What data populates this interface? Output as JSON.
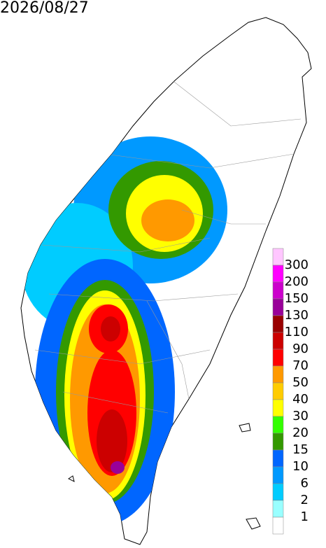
{
  "title": "2026/08/27",
  "legend": {
    "colors": [
      "#ffc6ff",
      "#ff00ff",
      "#cc00cc",
      "#990099",
      "#990000",
      "#cc0000",
      "#ff0000",
      "#ff9900",
      "#ffcc00",
      "#ffff00",
      "#33ff00",
      "#339900",
      "#0066ff",
      "#0099ff",
      "#00ccff",
      "#99ffff",
      "#ffffff"
    ],
    "labels": [
      300,
      200,
      150,
      130,
      110,
      90,
      70,
      50,
      40,
      30,
      20,
      15,
      10,
      6,
      2,
      1
    ]
  }
}
